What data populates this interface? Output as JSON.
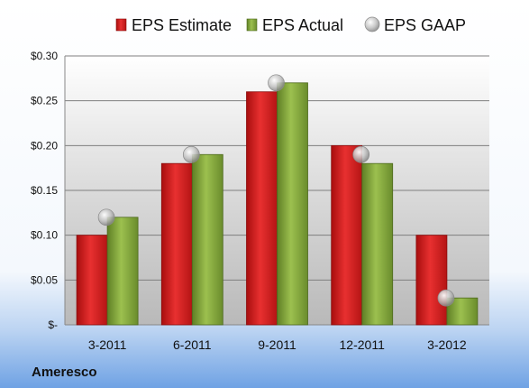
{
  "chart_data": {
    "type": "bar",
    "categories": [
      "3-2011",
      "6-2011",
      "9-2011",
      "12-2011",
      "3-2012"
    ],
    "series": [
      {
        "name": "EPS Estimate",
        "type": "bar",
        "color": "#d42020",
        "values": [
          0.1,
          0.18,
          0.26,
          0.2,
          0.1
        ]
      },
      {
        "name": "EPS Actual",
        "type": "bar",
        "color": "#7fa33a",
        "values": [
          0.12,
          0.19,
          0.27,
          0.18,
          0.03
        ]
      },
      {
        "name": "EPS GAAP",
        "type": "scatter",
        "color": "#c0c0c0",
        "values": [
          0.12,
          0.19,
          0.27,
          0.19,
          0.03
        ]
      }
    ],
    "ylim": [
      0,
      0.3
    ],
    "yticks": [
      0,
      0.05,
      0.1,
      0.15,
      0.2,
      0.25,
      0.3
    ],
    "ytick_labels": [
      "$-",
      "$0.10",
      "$0.15",
      "$0.20",
      "$0.25",
      "$0.30"
    ],
    "ytick_labels_full": [
      "$-",
      "$0.05",
      "$0.10",
      "$0.15",
      "$0.20",
      "$0.25",
      "$0.30"
    ],
    "grid": true,
    "legend_position": "top"
  },
  "company": "Ameresco"
}
